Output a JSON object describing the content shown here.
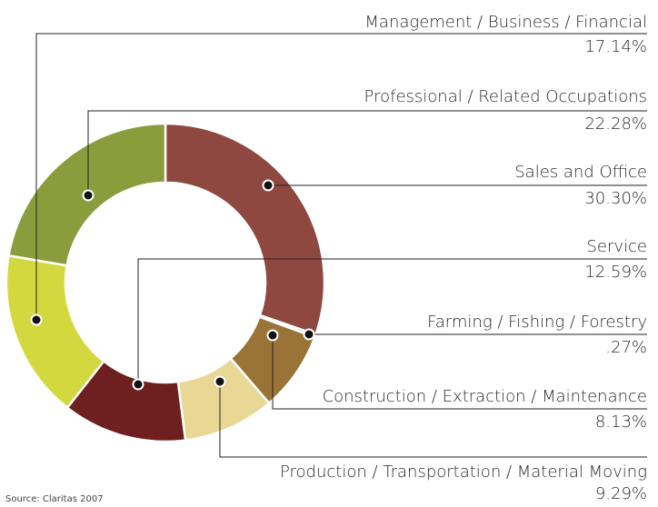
{
  "chart_data": {
    "type": "donut",
    "categories": [
      "Sales and Office",
      "Farming / Fishing / Forestry",
      "Construction / Extraction / Maintenance",
      "Production / Transportation / Material Moving",
      "Service",
      "Management /  Business / Financial",
      "Professional / Related Occupations"
    ],
    "values": [
      30.3,
      0.27,
      8.13,
      9.29,
      12.59,
      17.14,
      22.28
    ],
    "value_labels": [
      "30.30%",
      ".27%",
      "8.13%",
      "9.29%",
      "12.59%",
      "17.14%",
      "22.28%"
    ],
    "colors": [
      "#8e4840",
      "#2f3f7a",
      "#9a7436",
      "#e8d795",
      "#6e1f1f",
      "#d3d83f",
      "#8a9c3c"
    ],
    "source": "Source: Claritas 2007"
  }
}
